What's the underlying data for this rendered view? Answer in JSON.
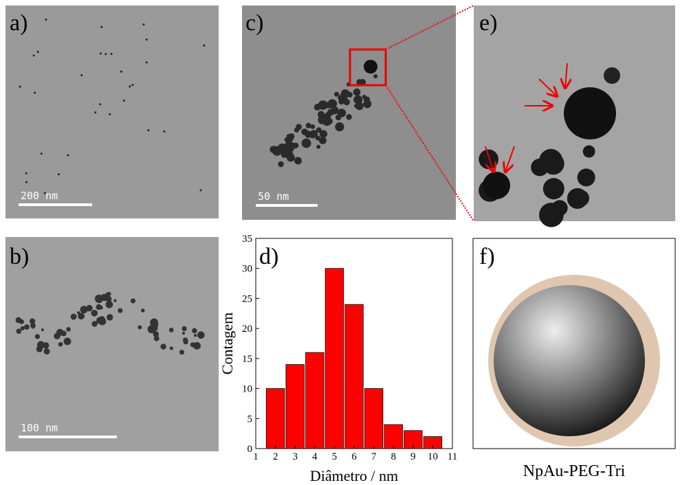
{
  "panels": [
    {
      "label": "a)",
      "scale_bar": "200 nm"
    },
    {
      "label": "b)",
      "scale_bar": "100 nm"
    },
    {
      "label": "c)",
      "scale_bar": "50 nm"
    },
    {
      "label": "d)"
    },
    {
      "label": "e)"
    },
    {
      "label": "f)",
      "caption": "NpAu-PEG-Tri"
    }
  ],
  "chart_data": {
    "type": "histogram",
    "x_label": "Diâmetro / nm",
    "y_label": "Contagem",
    "bins": [
      1.5,
      2.5,
      3.5,
      4.5,
      5.5,
      6.5,
      7.5,
      8.5,
      9.5,
      10.5
    ],
    "values": [
      10,
      14,
      16,
      30,
      24,
      10,
      4,
      3,
      2
    ],
    "color": "#ff0000",
    "xlim": [
      1,
      11
    ],
    "xticks": [
      1,
      2,
      3,
      4,
      5,
      6,
      7,
      8,
      9,
      10,
      11
    ],
    "ylim": [
      0,
      35
    ],
    "yticks": [
      0,
      5,
      10,
      15,
      20,
      25,
      30,
      35
    ]
  }
}
